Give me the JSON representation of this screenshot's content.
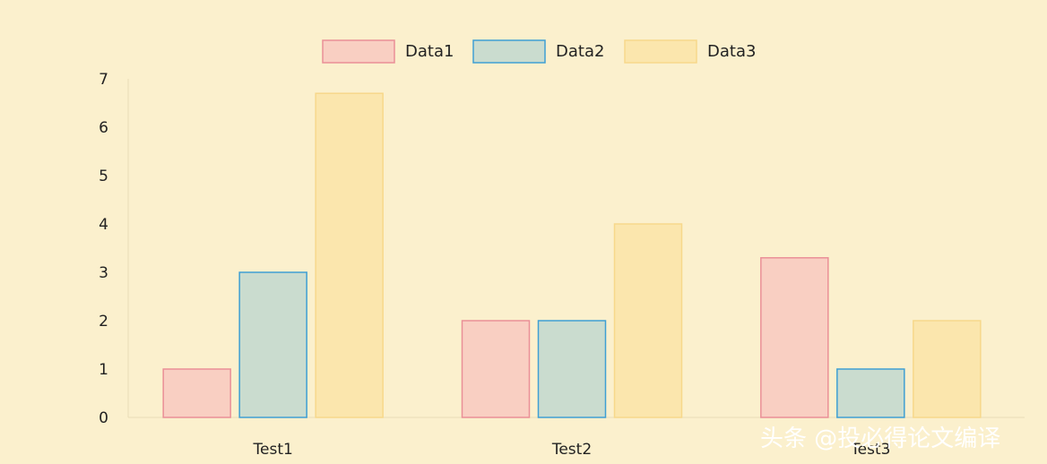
{
  "chart_data": {
    "type": "bar",
    "categories": [
      "Test1",
      "Test2",
      "Test3"
    ],
    "series": [
      {
        "name": "Data1",
        "values": [
          1,
          2,
          3.3
        ],
        "fill": "#f9cfc2",
        "stroke": "#ea8f97"
      },
      {
        "name": "Data2",
        "values": [
          3,
          2,
          1
        ],
        "fill": "#cadccf",
        "stroke": "#3f9fd3"
      },
      {
        "name": "Data3",
        "values": [
          6.7,
          4,
          2
        ],
        "fill": "#fbe6ad",
        "stroke": "#f7d88b"
      }
    ],
    "title": "",
    "xlabel": "",
    "ylabel": "",
    "ylim": [
      0,
      7
    ],
    "yticks": [
      0,
      1,
      2,
      3,
      4,
      5,
      6,
      7
    ],
    "grid": false,
    "legend": "top-center"
  },
  "watermark": "头条 @投必得论文编译",
  "colors": {
    "background": "#fbf0cd",
    "axis": "#e8ddb6",
    "text": "#222222"
  }
}
